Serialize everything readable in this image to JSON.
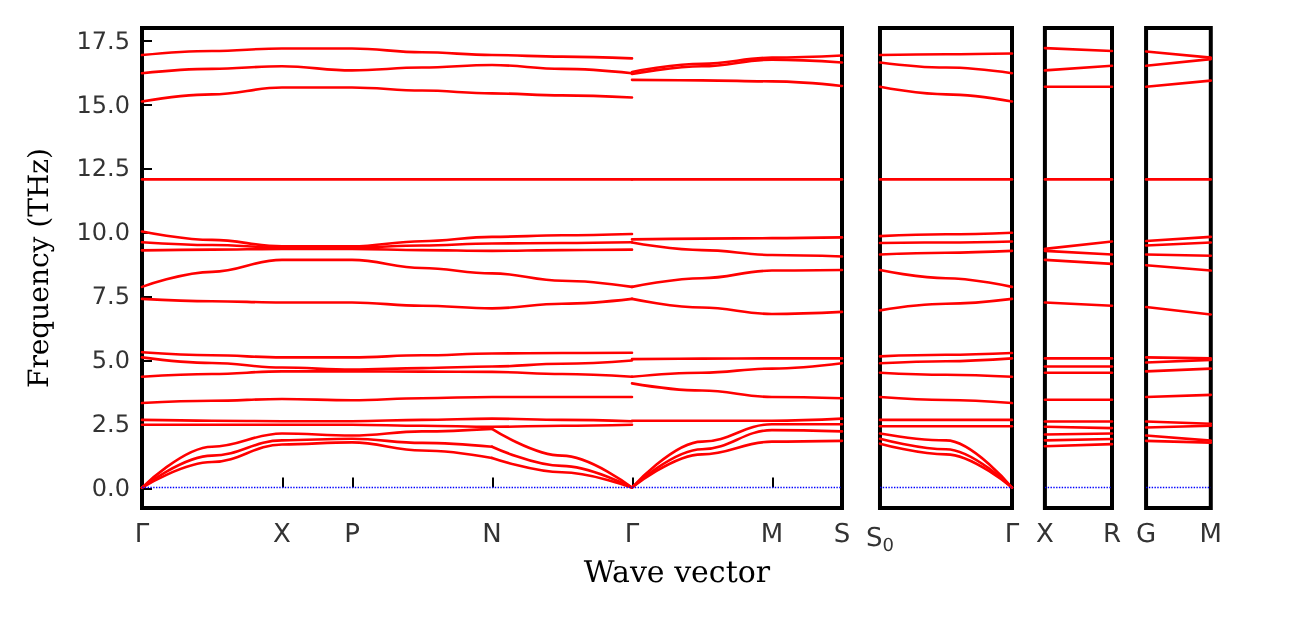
{
  "chart_data": [
    {
      "type": "line",
      "ylabel": "Frequency (THz)",
      "xlabel": "Wave vector",
      "color": "#ff0000",
      "marker": "none",
      "line_style": "solid",
      "categories": [
        "Γ",
        null,
        "X",
        "P",
        null,
        "N",
        null,
        "Γ",
        null,
        "M",
        "S"
      ],
      "ylim": [
        -0.8,
        18
      ],
      "yticks": [
        {
          "value": 0,
          "label": "0.0"
        },
        {
          "value": 2.5,
          "label": "2.5"
        },
        {
          "value": 5,
          "label": "5.0"
        },
        {
          "value": 7.5,
          "label": "7.5"
        },
        {
          "value": 10,
          "label": "10.0"
        },
        {
          "value": 12.5,
          "label": "12.5"
        },
        {
          "value": 15,
          "label": "15.0"
        },
        {
          "value": 17.5,
          "label": "17.5"
        }
      ],
      "ref_lines": [
        {
          "axis": "y",
          "value": 0,
          "color": "#0000ff",
          "line_style": "dotted"
        }
      ],
      "series": [
        {
          "values": [
            16.94,
            17.1,
            17.2,
            17.2,
            17.05,
            16.94,
            16.88,
            16.81,
            null,
            null,
            null
          ]
        },
        {
          "values": [
            16.23,
            16.4,
            16.5,
            16.34,
            16.45,
            16.55,
            16.4,
            16.23,
            null,
            null,
            null
          ]
        },
        {
          "values": [
            15.12,
            15.4,
            15.67,
            15.67,
            15.55,
            15.44,
            15.36,
            15.28,
            null,
            null,
            null
          ]
        },
        {
          "values": [
            12.07,
            12.07,
            12.07,
            12.07,
            12.07,
            12.07,
            12.07,
            12.07,
            null,
            null,
            null
          ]
        },
        {
          "values": [
            10.03,
            9.7,
            9.45,
            9.45,
            9.65,
            9.82,
            9.88,
            9.93,
            null,
            null,
            null
          ]
        },
        {
          "values": [
            9.61,
            9.5,
            9.4,
            9.4,
            9.48,
            9.56,
            9.58,
            9.61,
            null,
            null,
            null
          ]
        },
        {
          "values": [
            9.29,
            9.32,
            9.35,
            9.35,
            9.3,
            9.27,
            9.3,
            9.32,
            null,
            null,
            null
          ]
        },
        {
          "values": [
            7.86,
            8.45,
            8.92,
            8.92,
            8.6,
            8.39,
            8.1,
            7.86,
            null,
            null,
            null
          ]
        },
        {
          "values": [
            7.39,
            7.3,
            7.25,
            7.25,
            7.12,
            7.02,
            7.2,
            7.39,
            null,
            null,
            null
          ]
        },
        {
          "values": [
            5.3,
            5.18,
            5.1,
            5.1,
            5.18,
            5.25,
            5.27,
            5.28,
            null,
            null,
            null
          ]
        },
        {
          "values": [
            5.1,
            4.88,
            4.7,
            4.62,
            4.68,
            4.74,
            4.85,
            4.98,
            null,
            null,
            null
          ]
        },
        {
          "values": [
            4.34,
            4.45,
            4.55,
            4.55,
            4.54,
            4.53,
            4.45,
            4.34,
            null,
            null,
            null
          ]
        },
        {
          "values": [
            3.31,
            3.4,
            3.47,
            3.42,
            3.5,
            3.55,
            3.55,
            3.55,
            null,
            null,
            null
          ]
        },
        {
          "values": [
            2.65,
            2.62,
            2.6,
            2.6,
            2.65,
            2.7,
            2.65,
            2.6,
            null,
            null,
            null
          ]
        },
        {
          "values": [
            2.46,
            2.46,
            2.46,
            2.46,
            2.42,
            2.38,
            2.42,
            2.46,
            null,
            null,
            null
          ]
        },
        {
          "values": [
            0,
            1.6,
            2.12,
            2.04,
            2.2,
            2.3,
            null,
            null,
            null,
            null,
            null
          ]
        },
        {
          "values": [
            0,
            1.25,
            1.85,
            1.91,
            1.75,
            1.6,
            null,
            null,
            null,
            null,
            null
          ]
        },
        {
          "values": [
            0,
            1.0,
            1.69,
            1.77,
            1.45,
            1.16,
            null,
            null,
            null,
            null,
            null
          ]
        },
        {
          "values": [
            null,
            null,
            null,
            null,
            null,
            2.3,
            1.25,
            0,
            null,
            null,
            null
          ]
        },
        {
          "values": [
            null,
            null,
            null,
            null,
            null,
            1.6,
            0.85,
            0,
            null,
            null,
            null
          ]
        },
        {
          "values": [
            null,
            null,
            null,
            null,
            null,
            1.16,
            0.6,
            0,
            null,
            null,
            null
          ]
        },
        {
          "values": [
            null,
            null,
            null,
            null,
            null,
            null,
            null,
            16.28,
            16.6,
            16.84,
            16.92
          ]
        },
        {
          "values": [
            null,
            null,
            null,
            null,
            null,
            null,
            null,
            16.2,
            16.5,
            16.76,
            16.65
          ]
        },
        {
          "values": [
            null,
            null,
            null,
            null,
            null,
            null,
            null,
            15.97,
            15.95,
            15.91,
            15.73
          ]
        },
        {
          "values": [
            null,
            null,
            null,
            null,
            null,
            null,
            null,
            12.07,
            12.07,
            12.07,
            12.07
          ]
        },
        {
          "values": [
            null,
            null,
            null,
            null,
            null,
            null,
            null,
            9.72,
            9.75,
            9.77,
            9.8
          ]
        },
        {
          "values": [
            null,
            null,
            null,
            null,
            null,
            null,
            null,
            9.6,
            9.3,
            9.11,
            9.05
          ]
        },
        {
          "values": [
            null,
            null,
            null,
            null,
            null,
            null,
            null,
            7.86,
            8.2,
            8.5,
            8.52
          ]
        },
        {
          "values": [
            null,
            null,
            null,
            null,
            null,
            null,
            null,
            7.39,
            7.05,
            6.8,
            6.88
          ]
        },
        {
          "values": [
            null,
            null,
            null,
            null,
            null,
            null,
            null,
            5.03,
            5.05,
            5.06,
            5.06
          ]
        },
        {
          "values": [
            null,
            null,
            null,
            null,
            null,
            null,
            null,
            4.34,
            4.5,
            4.66,
            4.87
          ]
        },
        {
          "values": [
            null,
            null,
            null,
            null,
            null,
            null,
            null,
            4.08,
            3.8,
            3.55,
            3.5
          ]
        },
        {
          "values": [
            null,
            null,
            null,
            null,
            null,
            null,
            null,
            2.62,
            2.62,
            2.62,
            2.7
          ]
        },
        {
          "values": [
            null,
            null,
            null,
            null,
            null,
            null,
            null,
            0,
            1.8,
            2.48,
            2.48
          ]
        },
        {
          "values": [
            null,
            null,
            null,
            null,
            null,
            null,
            null,
            0,
            1.5,
            2.25,
            2.2
          ]
        },
        {
          "values": [
            null,
            null,
            null,
            null,
            null,
            null,
            null,
            0,
            1.3,
            1.8,
            1.83
          ]
        }
      ]
    },
    {
      "type": "line",
      "color": "#ff0000",
      "marker": "none",
      "line_style": "solid",
      "tick_labels": "x",
      "categories": [
        "S$_{0}$",
        null,
        "Γ"
      ],
      "ylim": [
        -0.8,
        18
      ],
      "ref_lines": [
        {
          "axis": "y",
          "value": 0,
          "color": "#0000ff",
          "line_style": "dotted"
        }
      ],
      "series": [
        {
          "values": [
            16.94,
            16.97,
            17.0
          ]
        },
        {
          "values": [
            16.65,
            16.45,
            16.23
          ]
        },
        {
          "values": [
            15.7,
            15.4,
            15.12
          ]
        },
        {
          "values": [
            12.07,
            12.07,
            12.07
          ]
        },
        {
          "values": [
            9.85,
            9.92,
            9.98
          ]
        },
        {
          "values": [
            9.58,
            9.6,
            9.64
          ]
        },
        {
          "values": [
            9.13,
            9.2,
            9.27
          ]
        },
        {
          "values": [
            8.52,
            8.2,
            7.86
          ]
        },
        {
          "values": [
            6.94,
            7.2,
            7.39
          ]
        },
        {
          "values": [
            5.14,
            5.2,
            5.27
          ]
        },
        {
          "values": [
            4.87,
            4.95,
            5.06
          ]
        },
        {
          "values": [
            4.5,
            4.42,
            4.34
          ]
        },
        {
          "values": [
            3.55,
            3.43,
            3.31
          ]
        },
        {
          "values": [
            2.65,
            2.65,
            2.65
          ]
        },
        {
          "values": [
            2.4,
            2.4,
            2.4
          ]
        },
        {
          "values": [
            2.12,
            1.85,
            0
          ]
        },
        {
          "values": [
            1.91,
            1.5,
            0
          ]
        },
        {
          "values": [
            1.72,
            1.3,
            0
          ]
        }
      ]
    },
    {
      "type": "line",
      "color": "#ff0000",
      "marker": "none",
      "line_style": "solid",
      "tick_labels": "x",
      "categories": [
        "X",
        "R"
      ],
      "ylim": [
        -0.8,
        18
      ],
      "ref_lines": [
        {
          "axis": "y",
          "value": 0,
          "color": "#0000ff",
          "line_style": "dotted"
        }
      ],
      "series": [
        {
          "values": [
            17.21,
            17.1
          ]
        },
        {
          "values": [
            16.34,
            16.52
          ]
        },
        {
          "values": [
            15.7,
            15.7
          ]
        },
        {
          "values": [
            12.07,
            12.07
          ]
        },
        {
          "values": [
            9.35,
            9.64
          ]
        },
        {
          "values": [
            9.27,
            9.13
          ]
        },
        {
          "values": [
            8.92,
            8.76
          ]
        },
        {
          "values": [
            7.25,
            7.12
          ]
        },
        {
          "values": [
            5.06,
            5.06
          ]
        },
        {
          "values": [
            4.74,
            4.74
          ]
        },
        {
          "values": [
            4.5,
            4.5
          ]
        },
        {
          "values": [
            3.44,
            3.44
          ]
        },
        {
          "values": [
            2.59,
            2.59
          ]
        },
        {
          "values": [
            2.38,
            2.33
          ]
        },
        {
          "values": [
            2.08,
            2.12
          ]
        },
        {
          "values": [
            1.85,
            1.9
          ]
        },
        {
          "values": [
            1.62,
            1.7
          ]
        }
      ]
    },
    {
      "type": "line",
      "color": "#ff0000",
      "marker": "none",
      "line_style": "solid",
      "tick_labels": "x",
      "categories": [
        "G",
        "M"
      ],
      "ylim": [
        -0.8,
        18
      ],
      "ref_lines": [
        {
          "axis": "y",
          "value": 0,
          "color": "#0000ff",
          "line_style": "dotted"
        }
      ],
      "series": [
        {
          "values": [
            17.08,
            16.84
          ]
        },
        {
          "values": [
            16.52,
            16.78
          ]
        },
        {
          "values": [
            15.7,
            15.94
          ]
        },
        {
          "values": [
            12.07,
            12.07
          ]
        },
        {
          "values": [
            9.66,
            9.82
          ]
        },
        {
          "values": [
            9.48,
            9.6
          ]
        },
        {
          "values": [
            9.13,
            9.08
          ]
        },
        {
          "values": [
            8.71,
            8.5
          ]
        },
        {
          "values": [
            7.07,
            6.78
          ]
        },
        {
          "values": [
            5.1,
            5.06
          ]
        },
        {
          "values": [
            4.9,
            5.0
          ]
        },
        {
          "values": [
            4.55,
            4.66
          ]
        },
        {
          "values": [
            3.55,
            3.63
          ]
        },
        {
          "values": [
            2.59,
            2.5
          ]
        },
        {
          "values": [
            2.35,
            2.42
          ]
        },
        {
          "values": [
            2.04,
            1.84
          ]
        },
        {
          "values": [
            1.83,
            1.76
          ]
        }
      ]
    }
  ]
}
